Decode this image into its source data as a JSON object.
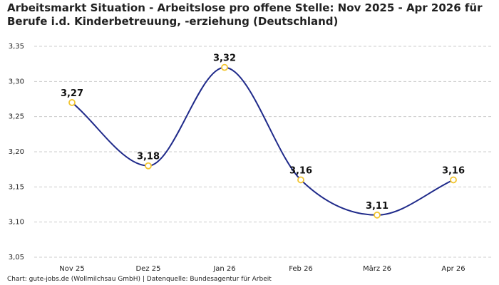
{
  "chart_data": {
    "type": "line",
    "title": "Arbeitsmarkt Situation - Arbeitslose pro offene Stelle: Nov 2025 - Apr 2026 für Berufe i.d. Kinderbetreuung, -erziehung (Deutschland)",
    "categories": [
      "Nov 25",
      "Dez 25",
      "Jan 26",
      "Feb 26",
      "März 26",
      "Apr 26"
    ],
    "values": [
      3.27,
      3.18,
      3.32,
      3.16,
      3.11,
      3.16
    ],
    "value_labels": [
      "3,27",
      "3,18",
      "3,32",
      "3,16",
      "3,11",
      "3,16"
    ],
    "y_ticks": [
      "3,05",
      "3,10",
      "3,15",
      "3,20",
      "3,25",
      "3,30",
      "3,35"
    ],
    "ylim": [
      3.05,
      3.35
    ],
    "xlabel": "",
    "ylabel": "",
    "grid": true,
    "smooth": true,
    "colors": {
      "line": "#1f2a8a",
      "marker_stroke": "#f2c531",
      "grid": "#cccccc"
    }
  },
  "footer": "Chart: gute-jobs.de (Wollmilchsau GmbH) | Datenquelle: Bundesagentur für Arbeit"
}
